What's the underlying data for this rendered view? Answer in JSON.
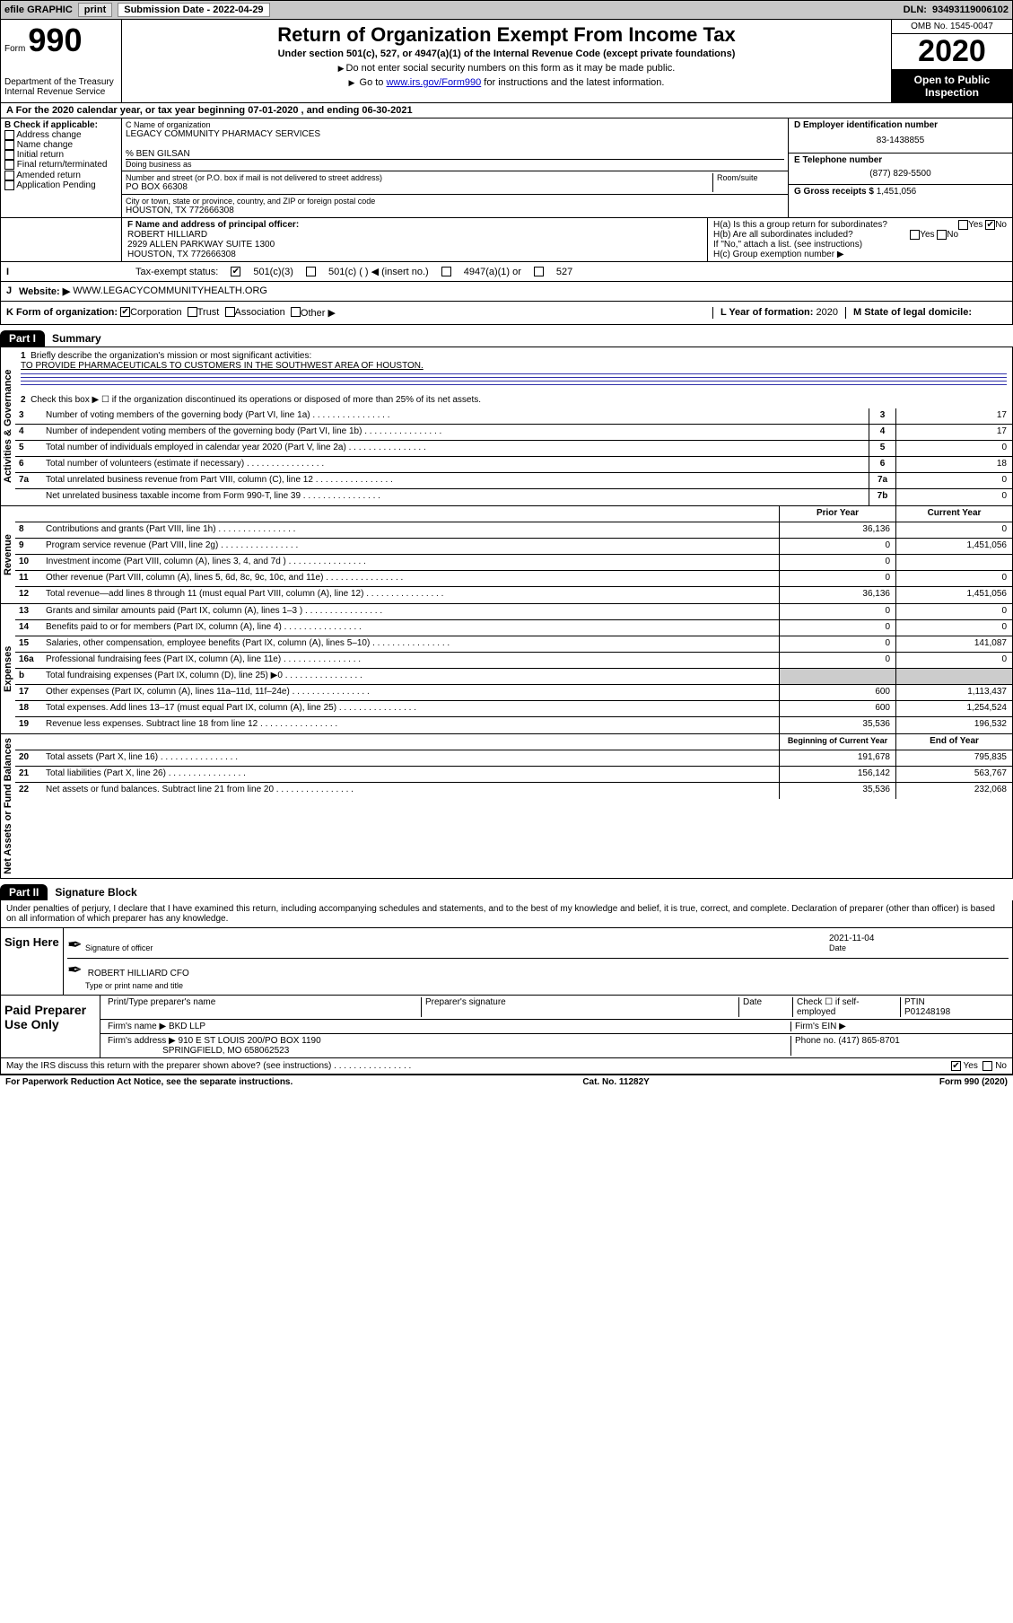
{
  "topbar": {
    "efile_label": "efile GRAPHIC",
    "print_btn": "print",
    "submission_label": "Submission Date",
    "submission_date": "2022-04-29",
    "dln_label": "DLN:",
    "dln": "93493119006102"
  },
  "form_header": {
    "form_word": "Form",
    "form_number": "990",
    "dept": "Department of the Treasury\nInternal Revenue Service",
    "title": "Return of Organization Exempt From Income Tax",
    "subtitle": "Under section 501(c), 527, or 4947(a)(1) of the Internal Revenue Code (except private foundations)",
    "inst1": "Do not enter social security numbers on this form as it may be made public.",
    "inst2_pre": "Go to ",
    "inst2_link": "www.irs.gov/Form990",
    "inst2_post": " for instructions and the latest information.",
    "omb": "OMB No. 1545-0047",
    "year": "2020",
    "open_public": "Open to Public Inspection"
  },
  "period": {
    "text": "For the 2020 calendar year, or tax year beginning 07-01-2020     , and ending 06-30-2021"
  },
  "section_b": {
    "header": "B Check if applicable:",
    "opts": [
      "Address change",
      "Name change",
      "Initial return",
      "Final return/terminated",
      "Amended return",
      "Application Pending"
    ]
  },
  "section_c": {
    "name_label": "C Name of organization",
    "name": "LEGACY COMMUNITY PHARMACY SERVICES",
    "care_of": "% BEN GILSAN",
    "dba_label": "Doing business as",
    "addr_label": "Number and street (or P.O. box if mail is not delivered to street address)",
    "room_label": "Room/suite",
    "addr": "PO BOX 66308",
    "city_label": "City or town, state or province, country, and ZIP or foreign postal code",
    "city": "HOUSTON, TX  772666308"
  },
  "section_d": {
    "ein_label": "D Employer identification number",
    "ein": "83-1438855",
    "tel_label": "E Telephone number",
    "tel": "(877) 829-5500",
    "gross_label": "G Gross receipts $",
    "gross": "1,451,056"
  },
  "section_f": {
    "label": "F  Name and address of principal officer:",
    "name": "ROBERT HILLIARD",
    "addr1": "2929 ALLEN PARKWAY SUITE 1300",
    "addr2": "HOUSTON, TX  772666308"
  },
  "section_h": {
    "ha": "H(a)  Is this a group return for subordinates?",
    "hb": "H(b)  Are all subordinates included?",
    "hb_note": "If \"No,\" attach a list. (see instructions)",
    "hc": "H(c)  Group exemption number ▶",
    "yes": "Yes",
    "no": "No"
  },
  "tax_status": {
    "label": "Tax-exempt status:",
    "opt1": "501(c)(3)",
    "opt2": "501(c) (   ) ◀ (insert no.)",
    "opt3": "4947(a)(1) or",
    "opt4": "527"
  },
  "website": {
    "label_j": "J",
    "label": "Website: ▶",
    "value": "WWW.LEGACYCOMMUNITYHEALTH.ORG"
  },
  "klm": {
    "k_label": "K Form of organization:",
    "k_opts": [
      "Corporation",
      "Trust",
      "Association",
      "Other ▶"
    ],
    "l_label": "L Year of formation:",
    "l_val": "2020",
    "m_label": "M State of legal domicile:"
  },
  "part1": {
    "tab": "Part I",
    "title": "Summary",
    "line1_label": "Briefly describe the organization's mission or most significant activities:",
    "mission": "TO PROVIDE PHARMACEUTICALS TO CUSTOMERS IN THE SOUTHWEST AREA OF HOUSTON.",
    "line2": "Check this box ▶ ☐  if the organization discontinued its operations or disposed of more than 25% of its net assets.",
    "governance_label": "Activities & Governance",
    "revenue_label": "Revenue",
    "expenses_label": "Expenses",
    "netassets_label": "Net Assets or Fund Balances",
    "lines": [
      {
        "n": "3",
        "t": "Number of voting members of the governing body (Part VI, line 1a)",
        "box": "3",
        "v": "17"
      },
      {
        "n": "4",
        "t": "Number of independent voting members of the governing body (Part VI, line 1b)",
        "box": "4",
        "v": "17"
      },
      {
        "n": "5",
        "t": "Total number of individuals employed in calendar year 2020 (Part V, line 2a)",
        "box": "5",
        "v": "0"
      },
      {
        "n": "6",
        "t": "Total number of volunteers (estimate if necessary)",
        "box": "6",
        "v": "18"
      },
      {
        "n": "7a",
        "t": "Total unrelated business revenue from Part VIII, column (C), line 12",
        "box": "7a",
        "v": "0"
      },
      {
        "n": " ",
        "t": "Net unrelated business taxable income from Form 990-T, line 39",
        "box": "7b",
        "v": "0"
      }
    ],
    "prior_year": "Prior Year",
    "current_year": "Current Year",
    "rev_lines": [
      {
        "n": "8",
        "t": "Contributions and grants (Part VIII, line 1h)",
        "py": "36,136",
        "cy": "0"
      },
      {
        "n": "9",
        "t": "Program service revenue (Part VIII, line 2g)",
        "py": "0",
        "cy": "1,451,056"
      },
      {
        "n": "10",
        "t": "Investment income (Part VIII, column (A), lines 3, 4, and 7d )",
        "py": "0",
        "cy": ""
      },
      {
        "n": "11",
        "t": "Other revenue (Part VIII, column (A), lines 5, 6d, 8c, 9c, 10c, and 11e)",
        "py": "0",
        "cy": "0"
      },
      {
        "n": "12",
        "t": "Total revenue—add lines 8 through 11 (must equal Part VIII, column (A), line 12)",
        "py": "36,136",
        "cy": "1,451,056"
      }
    ],
    "exp_lines": [
      {
        "n": "13",
        "t": "Grants and similar amounts paid (Part IX, column (A), lines 1–3 )",
        "py": "0",
        "cy": "0"
      },
      {
        "n": "14",
        "t": "Benefits paid to or for members (Part IX, column (A), line 4)",
        "py": "0",
        "cy": "0"
      },
      {
        "n": "15",
        "t": "Salaries, other compensation, employee benefits (Part IX, column (A), lines 5–10)",
        "py": "0",
        "cy": "141,087"
      },
      {
        "n": "16a",
        "t": "Professional fundraising fees (Part IX, column (A), line 11e)",
        "py": "0",
        "cy": "0"
      },
      {
        "n": "b",
        "t": "Total fundraising expenses (Part IX, column (D), line 25) ▶0",
        "py": "",
        "cy": "",
        "shade": true
      },
      {
        "n": "17",
        "t": "Other expenses (Part IX, column (A), lines 11a–11d, 11f–24e)",
        "py": "600",
        "cy": "1,113,437"
      },
      {
        "n": "18",
        "t": "Total expenses. Add lines 13–17 (must equal Part IX, column (A), line 25)",
        "py": "600",
        "cy": "1,254,524"
      },
      {
        "n": "19",
        "t": "Revenue less expenses. Subtract line 18 from line 12",
        "py": "35,536",
        "cy": "196,532"
      }
    ],
    "begin_year": "Beginning of Current Year",
    "end_year": "End of Year",
    "net_lines": [
      {
        "n": "20",
        "t": "Total assets (Part X, line 16)",
        "py": "191,678",
        "cy": "795,835"
      },
      {
        "n": "21",
        "t": "Total liabilities (Part X, line 26)",
        "py": "156,142",
        "cy": "563,767"
      },
      {
        "n": "22",
        "t": "Net assets or fund balances. Subtract line 21 from line 20",
        "py": "35,536",
        "cy": "232,068"
      }
    ]
  },
  "part2": {
    "tab": "Part II",
    "title": "Signature Block",
    "perjury": "Under penalties of perjury, I declare that I have examined this return, including accompanying schedules and statements, and to the best of my knowledge and belief, it is true, correct, and complete. Declaration of preparer (other than officer) is based on all information of which preparer has any knowledge."
  },
  "sign": {
    "label": "Sign Here",
    "sig_officer": "Signature of officer",
    "date_label": "Date",
    "date": "2021-11-04",
    "name_title": "ROBERT HILLIARD  CFO",
    "type_label": "Type or print name and title"
  },
  "preparer": {
    "label": "Paid Preparer Use Only",
    "print_name": "Print/Type preparer's name",
    "sig": "Preparer's signature",
    "date": "Date",
    "check_self": "Check ☐ if self-employed",
    "ptin_label": "PTIN",
    "ptin": "P01248198",
    "firm_name_label": "Firm's name    ▶",
    "firm_name": "BKD LLP",
    "firm_ein_label": "Firm's EIN ▶",
    "firm_addr_label": "Firm's address ▶",
    "firm_addr": "910 E ST LOUIS 200/PO BOX 1190",
    "firm_city": "SPRINGFIELD, MO  658062523",
    "phone_label": "Phone no.",
    "phone": "(417) 865-8701"
  },
  "discuss": {
    "text": "May the IRS discuss this return with the preparer shown above? (see instructions)",
    "yes": "Yes",
    "no": "No"
  },
  "footer": {
    "left": "For Paperwork Reduction Act Notice, see the separate instructions.",
    "mid": "Cat. No. 11282Y",
    "right": "Form 990 (2020)"
  }
}
